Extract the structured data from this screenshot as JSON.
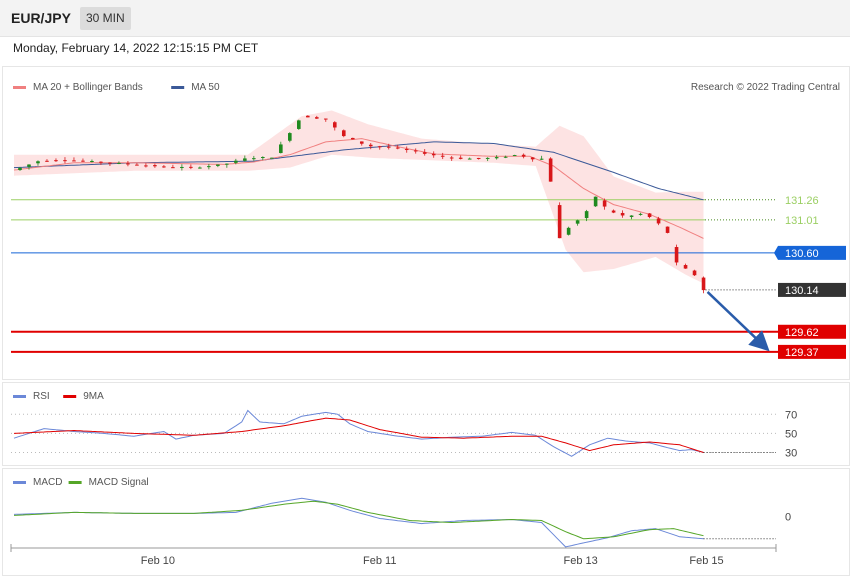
{
  "header": {
    "symbol": "EUR/JPY",
    "interval": "30 MIN"
  },
  "subtitle": "Monday, February 14, 2022 12:15:15 PM CET",
  "credit": "Research © 2022 Trading Central",
  "colors": {
    "bullish": "#1f8a1f",
    "bearish": "#d8171a",
    "bb_fill": "#fde3e3",
    "ma20": "#f08080",
    "ma50": "#3b5998",
    "support": "#e00000",
    "pivot": "#1565d8",
    "resistance": "#9bcf63",
    "rsi": "#6b88d8",
    "rsi_ma": "#e00000",
    "macd": "#6b88d8",
    "macd_signal": "#55a627",
    "arrow": "#2a5caa",
    "last_price": "#333333"
  },
  "chart_data": [
    {
      "type": "candlestick",
      "panel": "price",
      "legend": [
        {
          "label": "MA 20 + Bollinger Bands",
          "color": "#f08080"
        },
        {
          "label": "MA 50",
          "color": "#3b5998"
        }
      ],
      "x_ticks": [
        "Feb 10",
        "Feb 11",
        "Feb 13",
        "Feb 15"
      ],
      "ylim": [
        129.12,
        132.55
      ],
      "series_anchors": {
        "price": [
          [
            0,
            131.63
          ],
          [
            8,
            131.74
          ],
          [
            16,
            131.76
          ],
          [
            24,
            131.74
          ],
          [
            32,
            131.72
          ],
          [
            40,
            131.7
          ],
          [
            50,
            131.67
          ],
          [
            60,
            131.66
          ],
          [
            70,
            131.7
          ],
          [
            78,
            131.78
          ],
          [
            86,
            131.79
          ],
          [
            96,
            132.3
          ],
          [
            104,
            132.26
          ],
          [
            110,
            132.05
          ],
          [
            118,
            131.93
          ],
          [
            126,
            131.91
          ],
          [
            134,
            131.86
          ],
          [
            142,
            131.8
          ],
          [
            150,
            131.77
          ],
          [
            160,
            131.78
          ],
          [
            168,
            131.82
          ],
          [
            174,
            131.76
          ],
          [
            178,
            131.78
          ],
          [
            180,
            131.2
          ],
          [
            182,
            130.78
          ],
          [
            186,
            130.96
          ],
          [
            190,
            131.05
          ],
          [
            194,
            131.3
          ],
          [
            198,
            131.13
          ],
          [
            204,
            131.05
          ],
          [
            210,
            131.09
          ],
          [
            214,
            131.0
          ],
          [
            218,
            130.85
          ],
          [
            220,
            130.5
          ],
          [
            224,
            130.4
          ],
          [
            228,
            130.3
          ],
          [
            230,
            130.14
          ]
        ],
        "ma20": [
          [
            0,
            131.63
          ],
          [
            20,
            131.72
          ],
          [
            40,
            131.72
          ],
          [
            70,
            131.7
          ],
          [
            80,
            131.73
          ],
          [
            92,
            131.82
          ],
          [
            104,
            131.98
          ],
          [
            116,
            132.02
          ],
          [
            128,
            131.92
          ],
          [
            140,
            131.83
          ],
          [
            160,
            131.8
          ],
          [
            172,
            131.8
          ],
          [
            180,
            131.68
          ],
          [
            190,
            131.4
          ],
          [
            200,
            131.2
          ],
          [
            212,
            131.08
          ],
          [
            222,
            130.92
          ],
          [
            230,
            130.78
          ]
        ],
        "ma50": [
          [
            0,
            131.66
          ],
          [
            40,
            131.72
          ],
          [
            80,
            131.74
          ],
          [
            110,
            131.88
          ],
          [
            140,
            131.98
          ],
          [
            160,
            131.96
          ],
          [
            180,
            131.85
          ],
          [
            200,
            131.6
          ],
          [
            215,
            131.4
          ],
          [
            230,
            131.26
          ]
        ],
        "bb_upper": [
          [
            0,
            131.82
          ],
          [
            40,
            131.82
          ],
          [
            78,
            131.82
          ],
          [
            96,
            132.3
          ],
          [
            106,
            132.37
          ],
          [
            118,
            132.2
          ],
          [
            136,
            132.02
          ],
          [
            160,
            131.95
          ],
          [
            174,
            131.92
          ],
          [
            182,
            132.18
          ],
          [
            190,
            132.05
          ],
          [
            200,
            131.55
          ],
          [
            214,
            131.35
          ],
          [
            224,
            131.36
          ],
          [
            230,
            131.36
          ]
        ],
        "bb_lower": [
          [
            0,
            131.56
          ],
          [
            40,
            131.62
          ],
          [
            78,
            131.62
          ],
          [
            92,
            131.66
          ],
          [
            106,
            131.82
          ],
          [
            120,
            131.78
          ],
          [
            140,
            131.75
          ],
          [
            160,
            131.72
          ],
          [
            174,
            131.68
          ],
          [
            184,
            130.64
          ],
          [
            190,
            130.36
          ],
          [
            200,
            130.4
          ],
          [
            214,
            130.55
          ],
          [
            224,
            130.33
          ],
          [
            230,
            130.22
          ]
        ]
      },
      "levels": [
        {
          "label": "131.26",
          "value": 131.26,
          "kind": "resistance"
        },
        {
          "label": "131.01",
          "value": 131.01,
          "kind": "resistance"
        },
        {
          "label": "130.60",
          "value": 130.6,
          "kind": "pivot"
        },
        {
          "label": "130.14",
          "value": 130.14,
          "kind": "last"
        },
        {
          "label": "129.62",
          "value": 129.62,
          "kind": "support"
        },
        {
          "label": "129.37",
          "value": 129.37,
          "kind": "support"
        }
      ],
      "arrow": {
        "from": [
          230,
          130.14
        ],
        "to": [
          250,
          129.37
        ]
      }
    },
    {
      "type": "line",
      "panel": "rsi",
      "legend": [
        {
          "label": "RSI",
          "color": "#6b88d8"
        },
        {
          "label": "9MA",
          "color": "#e00000"
        }
      ],
      "ylim": [
        20,
        85
      ],
      "y_ticks": [
        "70",
        "50",
        "30"
      ],
      "series": [
        {
          "name": "RSI",
          "anchors": [
            [
              0,
              45
            ],
            [
              10,
              55
            ],
            [
              20,
              52
            ],
            [
              30,
              50
            ],
            [
              40,
              47
            ],
            [
              50,
              52
            ],
            [
              54,
              44
            ],
            [
              60,
              48
            ],
            [
              70,
              50
            ],
            [
              76,
              62
            ],
            [
              78,
              74
            ],
            [
              82,
              62
            ],
            [
              90,
              60
            ],
            [
              96,
              68
            ],
            [
              104,
              72
            ],
            [
              108,
              70
            ],
            [
              112,
              60
            ],
            [
              118,
              52
            ],
            [
              126,
              48
            ],
            [
              136,
              44
            ],
            [
              146,
              46
            ],
            [
              156,
              47
            ],
            [
              166,
              51
            ],
            [
              174,
              48
            ],
            [
              180,
              36
            ],
            [
              186,
              26
            ],
            [
              192,
              38
            ],
            [
              198,
              45
            ],
            [
              204,
              42
            ],
            [
              212,
              40
            ],
            [
              218,
              35
            ],
            [
              222,
              32
            ],
            [
              226,
              33
            ],
            [
              230,
              30
            ]
          ]
        },
        {
          "name": "9MA",
          "anchors": [
            [
              0,
              50
            ],
            [
              20,
              53
            ],
            [
              40,
              50
            ],
            [
              60,
              48
            ],
            [
              76,
              52
            ],
            [
              90,
              58
            ],
            [
              104,
              66
            ],
            [
              112,
              64
            ],
            [
              122,
              54
            ],
            [
              136,
              46
            ],
            [
              150,
              45
            ],
            [
              166,
              47
            ],
            [
              176,
              47
            ],
            [
              184,
              40
            ],
            [
              192,
              32
            ],
            [
              200,
              38
            ],
            [
              212,
              41
            ],
            [
              222,
              38
            ],
            [
              230,
              30
            ]
          ]
        }
      ]
    },
    {
      "type": "line",
      "panel": "macd",
      "legend": [
        {
          "label": "MACD",
          "color": "#6b88d8"
        },
        {
          "label": "MACD Signal",
          "color": "#55a627"
        }
      ],
      "ylim": [
        -0.35,
        0.28
      ],
      "y_ticks": [
        "0"
      ],
      "series": [
        {
          "name": "MACD",
          "anchors": [
            [
              0,
              0.02
            ],
            [
              20,
              0.04
            ],
            [
              40,
              0.03
            ],
            [
              60,
              0.03
            ],
            [
              74,
              0.04
            ],
            [
              86,
              0.13
            ],
            [
              96,
              0.18
            ],
            [
              104,
              0.14
            ],
            [
              112,
              0.06
            ],
            [
              122,
              -0.02
            ],
            [
              136,
              -0.07
            ],
            [
              150,
              -0.04
            ],
            [
              166,
              -0.03
            ],
            [
              176,
              -0.06
            ],
            [
              184,
              -0.3
            ],
            [
              190,
              -0.26
            ],
            [
              198,
              -0.21
            ],
            [
              206,
              -0.14
            ],
            [
              214,
              -0.12
            ],
            [
              222,
              -0.2
            ],
            [
              230,
              -0.22
            ]
          ]
        },
        {
          "name": "MACD Signal",
          "anchors": [
            [
              0,
              0.01
            ],
            [
              20,
              0.04
            ],
            [
              40,
              0.03
            ],
            [
              60,
              0.03
            ],
            [
              76,
              0.06
            ],
            [
              90,
              0.12
            ],
            [
              100,
              0.15
            ],
            [
              108,
              0.12
            ],
            [
              118,
              0.04
            ],
            [
              132,
              -0.04
            ],
            [
              146,
              -0.06
            ],
            [
              166,
              -0.03
            ],
            [
              176,
              -0.04
            ],
            [
              184,
              -0.15
            ],
            [
              190,
              -0.22
            ],
            [
              200,
              -0.2
            ],
            [
              212,
              -0.13
            ],
            [
              220,
              -0.12
            ],
            [
              230,
              -0.19
            ]
          ]
        }
      ]
    }
  ]
}
